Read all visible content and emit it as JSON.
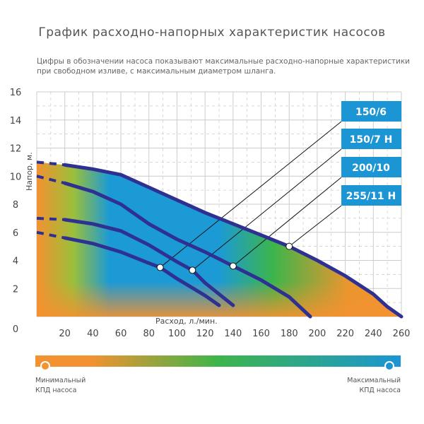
{
  "title": "График расходно-напорных характеристик насосов",
  "subtitle": "Цифры в обозначении насоса показывают максимальные расходно-напорные характеристики при свободном изливе, с максимальным диаметром шланга.",
  "chart_data": {
    "type": "line",
    "xlabel": "Расход, л./мин.",
    "ylabel": "Напор, м.",
    "xlim": [
      0,
      260
    ],
    "ylim": [
      0,
      16
    ],
    "xticks": [
      20,
      40,
      60,
      80,
      100,
      120,
      140,
      160,
      180,
      200,
      220,
      240,
      260
    ],
    "yticks": [
      0,
      2,
      4,
      6,
      8,
      10,
      12,
      14,
      16
    ],
    "grid": true,
    "series": [
      {
        "name": "150/6",
        "x": [
          0,
          20,
          40,
          60,
          80,
          88,
          100,
          120,
          130
        ],
        "y": [
          6.0,
          5.6,
          5.2,
          4.6,
          3.8,
          3.5,
          2.7,
          1.5,
          0.8
        ],
        "marker": [
          88,
          3.5
        ]
      },
      {
        "name": "150/7 Н",
        "x": [
          0,
          20,
          40,
          60,
          80,
          100,
          111,
          120,
          140
        ],
        "y": [
          7.0,
          6.9,
          6.6,
          6.1,
          5.1,
          3.9,
          3.3,
          2.4,
          0.8
        ],
        "marker": [
          111,
          3.3
        ]
      },
      {
        "name": "200/10",
        "x": [
          0,
          20,
          40,
          60,
          80,
          100,
          120,
          140,
          160,
          180,
          195
        ],
        "y": [
          10.0,
          9.5,
          8.9,
          8.0,
          6.6,
          5.5,
          4.6,
          3.6,
          2.6,
          1.4,
          0
        ],
        "marker": [
          140,
          3.6
        ]
      },
      {
        "name": "255/11 Н",
        "x": [
          0,
          20,
          40,
          60,
          80,
          100,
          120,
          140,
          160,
          180,
          200,
          220,
          240,
          250,
          260
        ],
        "y": [
          11.0,
          10.8,
          10.5,
          10.1,
          9.2,
          8.3,
          7.4,
          6.6,
          5.8,
          5.0,
          4.0,
          2.9,
          1.6,
          0.7,
          0
        ],
        "marker": [
          180,
          5.0
        ]
      }
    ],
    "line_color": "#2e3192",
    "label_color": "#1b95d4"
  },
  "legend": {
    "min_label": "Минимальный",
    "min_label2": "КПД насоса",
    "max_label": "Максимальный",
    "max_label2": "КПД насоса",
    "min_color": "#f39230",
    "mid_color": "#3db54a",
    "max_color": "#1b95d4"
  }
}
